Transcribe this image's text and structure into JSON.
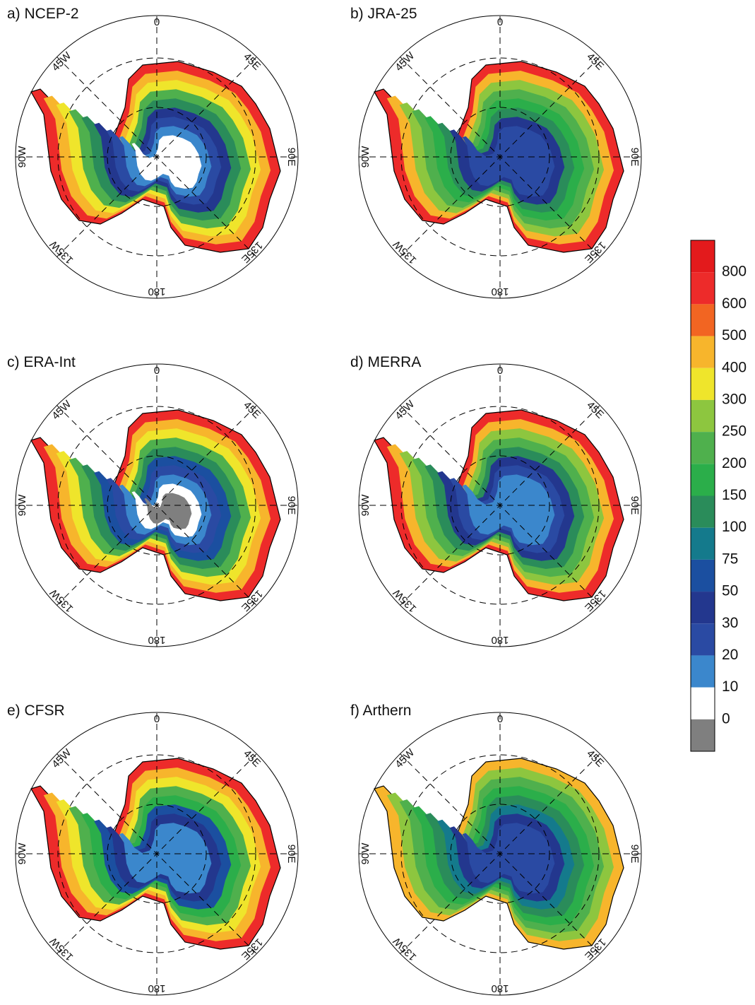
{
  "panels": [
    {
      "title": "a) NCEP-2"
    },
    {
      "title": "b) JRA-25"
    },
    {
      "title": "c) ERA-Int"
    },
    {
      "title": "d) MERRA"
    },
    {
      "title": "e) CFSR"
    },
    {
      "title": "f) Arthern"
    }
  ],
  "longitude_labels": [
    "0",
    "45E",
    "90E",
    "135E",
    "180",
    "135W",
    "90W",
    "45W"
  ],
  "colorbar": {
    "labels": [
      "800",
      "600",
      "500",
      "400",
      "300",
      "250",
      "200",
      "150",
      "100",
      "75",
      "50",
      "30",
      "20",
      "10",
      "0"
    ],
    "colors": [
      "#e31a1c",
      "#ed2b2a",
      "#f26522",
      "#f7b52c",
      "#efe52b",
      "#8dc63f",
      "#4fb04d",
      "#2bae4a",
      "#2a8c5a",
      "#147a8c",
      "#1b4fa0",
      "#23378e",
      "#2a4aa3",
      "#3b87cc",
      "#ffffff",
      "#7f7f7f"
    ]
  }
}
